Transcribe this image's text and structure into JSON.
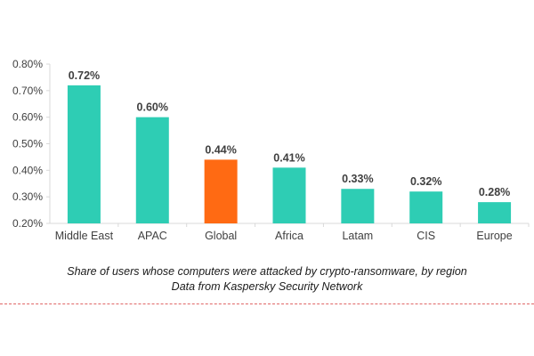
{
  "chart_data": {
    "type": "bar",
    "categories": [
      "Middle East",
      "APAC",
      "Global",
      "Africa",
      "Latam",
      "CIS",
      "Europe"
    ],
    "values": [
      0.72,
      0.6,
      0.44,
      0.41,
      0.33,
      0.32,
      0.28
    ],
    "data_labels": [
      "0.72%",
      "0.60%",
      "0.44%",
      "0.41%",
      "0.33%",
      "0.32%",
      "0.28%"
    ],
    "ylim": [
      0.2,
      0.8
    ],
    "yticks": [
      0.2,
      0.3,
      0.4,
      0.5,
      0.6,
      0.7,
      0.8
    ],
    "ytick_labels": [
      "0.20%",
      "0.30%",
      "0.40%",
      "0.50%",
      "0.60%",
      "0.70%",
      "0.80%"
    ],
    "grid": false,
    "legend": "none",
    "bar_color": "#2ecdb4",
    "highlight_category": "Global",
    "highlight_color": "#ff6a13",
    "caption": [
      "Share of users whose computers were attacked by crypto-ransomware, by region",
      "Data from Kaspersky Security Network"
    ]
  }
}
